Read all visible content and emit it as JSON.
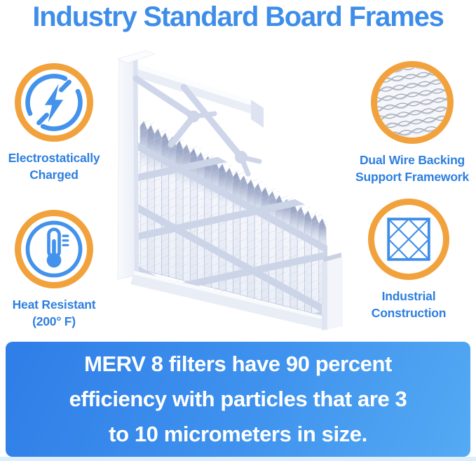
{
  "title": "Industry Standard Board Frames",
  "features": [
    {
      "id": "electrostatically-charged",
      "icon": "lightning-bolt-icon",
      "label_line1": "Electrostatically",
      "label_line2": "Charged"
    },
    {
      "id": "dual-wire-backing",
      "icon": "wire-mesh-icon",
      "label_line1": "Dual Wire Backing",
      "label_line2": "Support Framework"
    },
    {
      "id": "heat-resistant",
      "icon": "thermometer-icon",
      "label_line1": "Heat Resistant",
      "label_line2": "(200° F)"
    },
    {
      "id": "industrial-construction",
      "icon": "lattice-grid-icon",
      "label_line1": "Industrial",
      "label_line2": "Construction"
    }
  ],
  "banner": {
    "lines": [
      "MERV 8 filters have 90 percent",
      "efficiency with particles that are 3",
      "to 10 micrometers in size."
    ]
  },
  "illustration": {
    "name": "air-filter-image"
  },
  "colors": {
    "accent_blue": "#3E8EE9",
    "label_blue": "#2E7FDF",
    "accent_orange": "#F2A23C",
    "banner_gradient_start": "#2F7DE7",
    "banner_gradient_end": "#54AAF3",
    "banner_text": "#FFFFFF"
  }
}
